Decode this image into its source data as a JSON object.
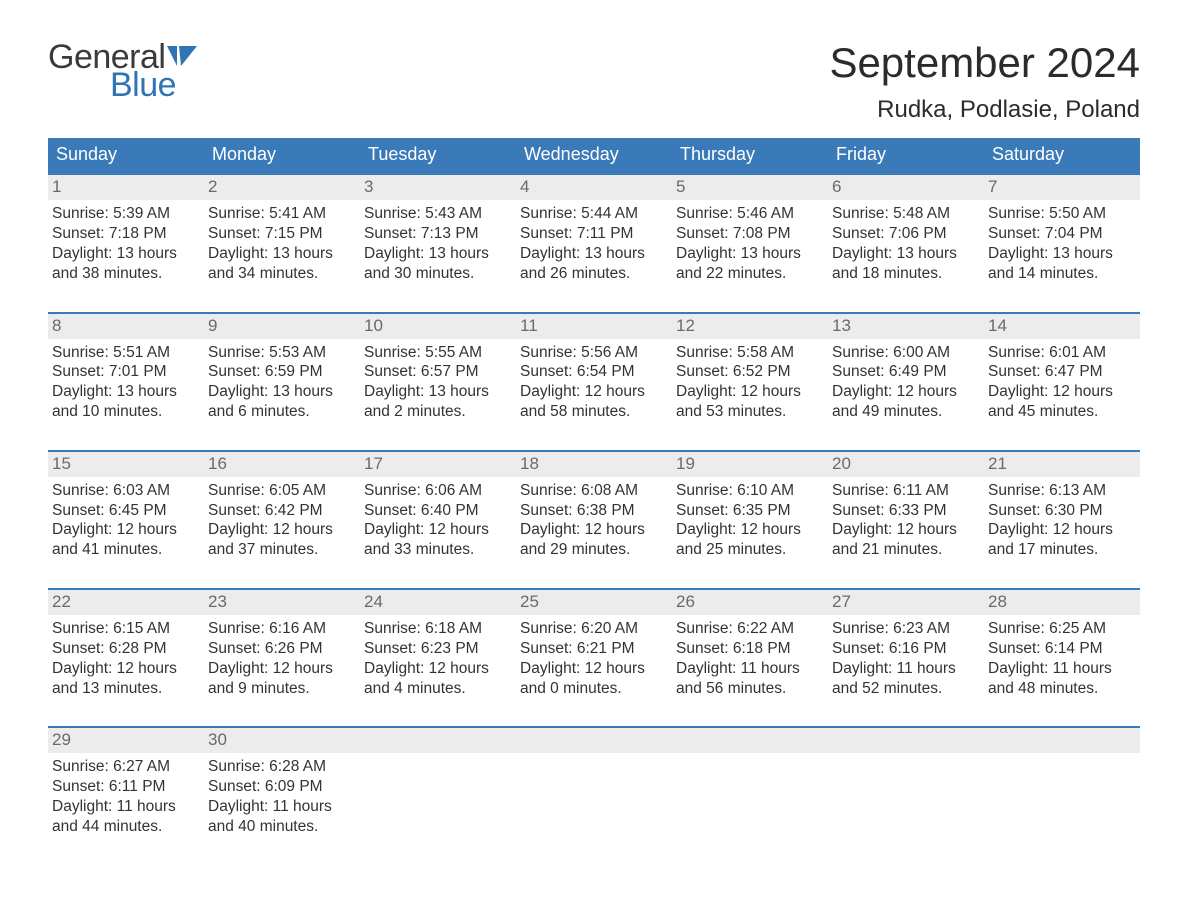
{
  "brand": {
    "text1": "General",
    "text2": "Blue",
    "flag_color": "#2f74b5"
  },
  "title": "September 2024",
  "location": "Rudka, Podlasie, Poland",
  "colors": {
    "header_bg": "#3a7ab8",
    "header_text": "#ffffff",
    "daynum_bg": "#ececec",
    "daynum_text": "#6a6a6a",
    "body_text": "#333333",
    "rule": "#3a7ab8"
  },
  "dow": [
    "Sunday",
    "Monday",
    "Tuesday",
    "Wednesday",
    "Thursday",
    "Friday",
    "Saturday"
  ],
  "weeks": [
    [
      {
        "n": "1",
        "sr": "5:39 AM",
        "ss": "7:18 PM",
        "dh": "13",
        "dm": "38"
      },
      {
        "n": "2",
        "sr": "5:41 AM",
        "ss": "7:15 PM",
        "dh": "13",
        "dm": "34"
      },
      {
        "n": "3",
        "sr": "5:43 AM",
        "ss": "7:13 PM",
        "dh": "13",
        "dm": "30"
      },
      {
        "n": "4",
        "sr": "5:44 AM",
        "ss": "7:11 PM",
        "dh": "13",
        "dm": "26"
      },
      {
        "n": "5",
        "sr": "5:46 AM",
        "ss": "7:08 PM",
        "dh": "13",
        "dm": "22"
      },
      {
        "n": "6",
        "sr": "5:48 AM",
        "ss": "7:06 PM",
        "dh": "13",
        "dm": "18"
      },
      {
        "n": "7",
        "sr": "5:50 AM",
        "ss": "7:04 PM",
        "dh": "13",
        "dm": "14"
      }
    ],
    [
      {
        "n": "8",
        "sr": "5:51 AM",
        "ss": "7:01 PM",
        "dh": "13",
        "dm": "10"
      },
      {
        "n": "9",
        "sr": "5:53 AM",
        "ss": "6:59 PM",
        "dh": "13",
        "dm": "6"
      },
      {
        "n": "10",
        "sr": "5:55 AM",
        "ss": "6:57 PM",
        "dh": "13",
        "dm": "2"
      },
      {
        "n": "11",
        "sr": "5:56 AM",
        "ss": "6:54 PM",
        "dh": "12",
        "dm": "58"
      },
      {
        "n": "12",
        "sr": "5:58 AM",
        "ss": "6:52 PM",
        "dh": "12",
        "dm": "53"
      },
      {
        "n": "13",
        "sr": "6:00 AM",
        "ss": "6:49 PM",
        "dh": "12",
        "dm": "49"
      },
      {
        "n": "14",
        "sr": "6:01 AM",
        "ss": "6:47 PM",
        "dh": "12",
        "dm": "45"
      }
    ],
    [
      {
        "n": "15",
        "sr": "6:03 AM",
        "ss": "6:45 PM",
        "dh": "12",
        "dm": "41"
      },
      {
        "n": "16",
        "sr": "6:05 AM",
        "ss": "6:42 PM",
        "dh": "12",
        "dm": "37"
      },
      {
        "n": "17",
        "sr": "6:06 AM",
        "ss": "6:40 PM",
        "dh": "12",
        "dm": "33"
      },
      {
        "n": "18",
        "sr": "6:08 AM",
        "ss": "6:38 PM",
        "dh": "12",
        "dm": "29"
      },
      {
        "n": "19",
        "sr": "6:10 AM",
        "ss": "6:35 PM",
        "dh": "12",
        "dm": "25"
      },
      {
        "n": "20",
        "sr": "6:11 AM",
        "ss": "6:33 PM",
        "dh": "12",
        "dm": "21"
      },
      {
        "n": "21",
        "sr": "6:13 AM",
        "ss": "6:30 PM",
        "dh": "12",
        "dm": "17"
      }
    ],
    [
      {
        "n": "22",
        "sr": "6:15 AM",
        "ss": "6:28 PM",
        "dh": "12",
        "dm": "13"
      },
      {
        "n": "23",
        "sr": "6:16 AM",
        "ss": "6:26 PM",
        "dh": "12",
        "dm": "9"
      },
      {
        "n": "24",
        "sr": "6:18 AM",
        "ss": "6:23 PM",
        "dh": "12",
        "dm": "4"
      },
      {
        "n": "25",
        "sr": "6:20 AM",
        "ss": "6:21 PM",
        "dh": "12",
        "dm": "0"
      },
      {
        "n": "26",
        "sr": "6:22 AM",
        "ss": "6:18 PM",
        "dh": "11",
        "dm": "56"
      },
      {
        "n": "27",
        "sr": "6:23 AM",
        "ss": "6:16 PM",
        "dh": "11",
        "dm": "52"
      },
      {
        "n": "28",
        "sr": "6:25 AM",
        "ss": "6:14 PM",
        "dh": "11",
        "dm": "48"
      }
    ],
    [
      {
        "n": "29",
        "sr": "6:27 AM",
        "ss": "6:11 PM",
        "dh": "11",
        "dm": "44"
      },
      {
        "n": "30",
        "sr": "6:28 AM",
        "ss": "6:09 PM",
        "dh": "11",
        "dm": "40"
      },
      {
        "empty": true
      },
      {
        "empty": true
      },
      {
        "empty": true
      },
      {
        "empty": true
      },
      {
        "empty": true
      }
    ]
  ],
  "labels": {
    "sunrise": "Sunrise: ",
    "sunset": "Sunset: ",
    "daylight_a": "Daylight: ",
    "daylight_b": " hours",
    "daylight_c": "and ",
    "daylight_d": " minutes."
  }
}
